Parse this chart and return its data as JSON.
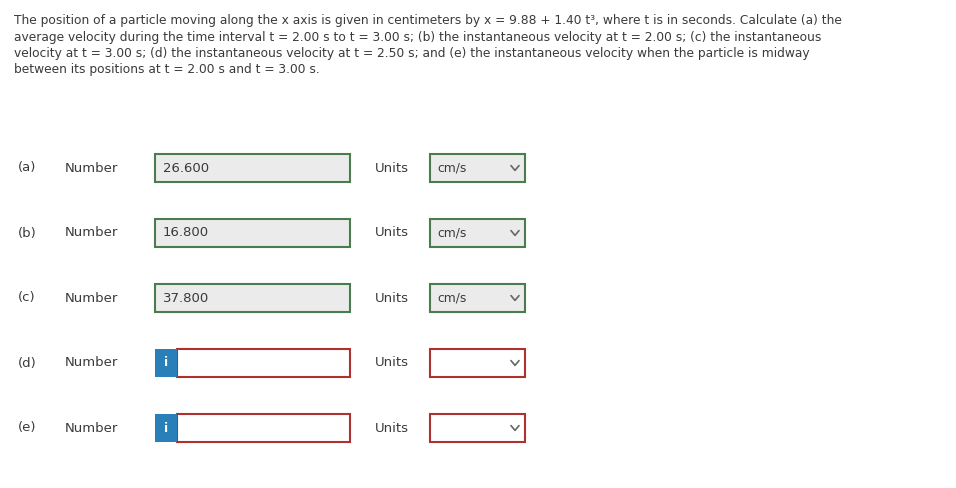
{
  "background_color": "#ffffff",
  "text_color": "#3a3a3a",
  "label_color": "#3a3a3a",
  "para_lines": [
    "The position of a particle moving along the x axis is given in centimeters by x = 9.88 + 1.40 t³, where t is in seconds. Calculate (a) the",
    "average velocity during the time interval t = 2.00 s to t = 3.00 s; (b) the instantaneous velocity at t = 2.00 s; (c) the instantaneous",
    "velocity at t = 3.00 s; (d) the instantaneous velocity at t = 2.50 s; and (e) the instantaneous velocity when the particle is midway",
    "between its positions at t = 2.00 s and t = 3.00 s."
  ],
  "rows": [
    {
      "label": "(a)",
      "number_text": "26.600",
      "units_text": "cm/s",
      "show_info": false,
      "box_border_color": "#4a7c4e",
      "units_border_color": "#4a7c4e",
      "box_bg": "#ebebeb",
      "units_bg": "#ebebeb"
    },
    {
      "label": "(b)",
      "number_text": "16.800",
      "units_text": "cm/s",
      "show_info": false,
      "box_border_color": "#4a7c4e",
      "units_border_color": "#4a7c4e",
      "box_bg": "#ebebeb",
      "units_bg": "#ebebeb"
    },
    {
      "label": "(c)",
      "number_text": "37.800",
      "units_text": "cm/s",
      "show_info": false,
      "box_border_color": "#4a7c4e",
      "units_border_color": "#4a7c4e",
      "box_bg": "#ebebeb",
      "units_bg": "#ebebeb"
    },
    {
      "label": "(d)",
      "number_text": "",
      "units_text": "",
      "show_info": true,
      "box_border_color": "#b03030",
      "units_border_color": "#b03030",
      "box_bg": "#ffffff",
      "units_bg": "#ffffff"
    },
    {
      "label": "(e)",
      "number_text": "",
      "units_text": "",
      "show_info": true,
      "box_border_color": "#b03030",
      "units_border_color": "#b03030",
      "box_bg": "#ffffff",
      "units_bg": "#ffffff"
    }
  ],
  "info_button_color": "#2980b9",
  "info_button_text": "i",
  "number_label": "Number",
  "units_label": "Units",
  "chevron_color": "#666666",
  "para_fontsize": 8.8,
  "label_fontsize": 9.5,
  "number_fontsize": 9.5,
  "units_fontsize": 8.8
}
